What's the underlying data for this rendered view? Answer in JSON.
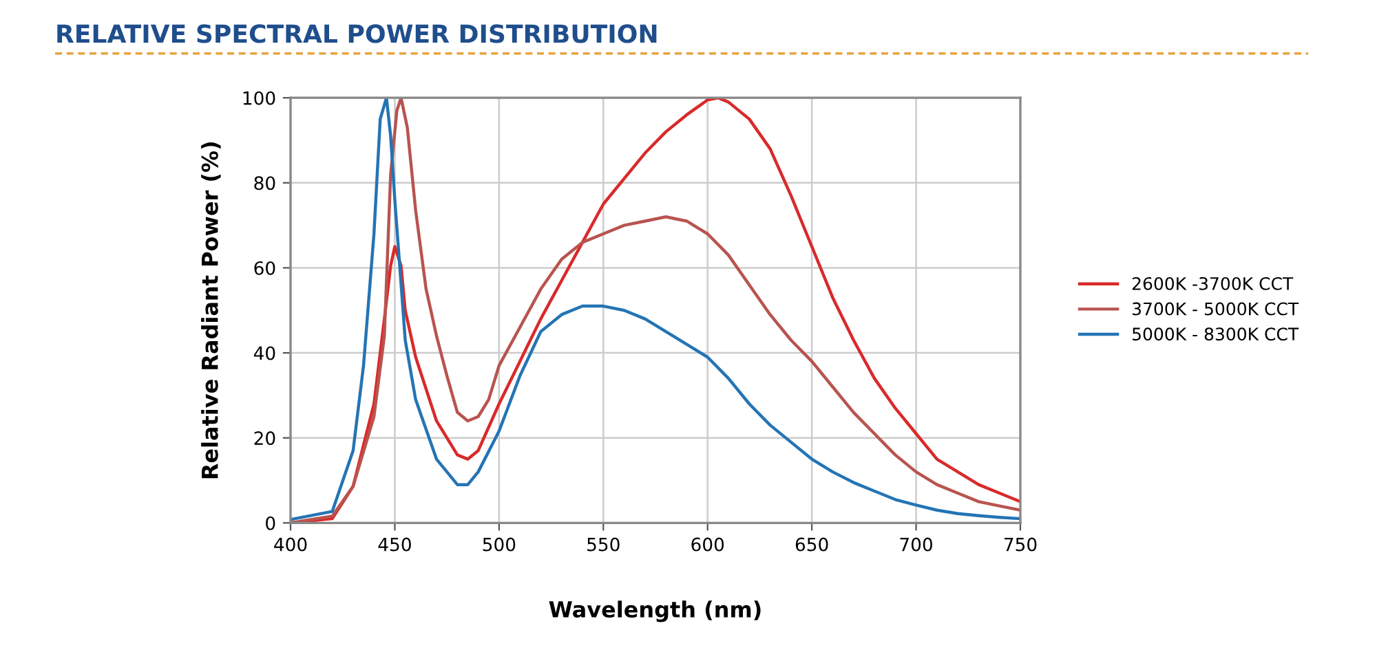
{
  "chart_data": {
    "type": "line",
    "title": "RELATIVE SPECTRAL POWER DISTRIBUTION",
    "xlabel": "Wavelength (nm)",
    "ylabel": "Relative Radiant Power (%)",
    "xlim": [
      400,
      750
    ],
    "xticks": [
      400,
      450,
      500,
      550,
      600,
      650,
      700,
      750
    ],
    "ylim": [
      0,
      100
    ],
    "yticks": [
      0,
      20,
      40,
      60,
      80,
      100
    ],
    "grid": true,
    "legend": "right",
    "marker": "none",
    "line_style": "solid",
    "series": [
      {
        "name": "2600K -3700K CCT",
        "color": "#d92a2a",
        "x": [
          400,
          420,
          430,
          440,
          445,
          448,
          450,
          453,
          455,
          460,
          470,
          480,
          485,
          490,
          500,
          510,
          520,
          530,
          540,
          550,
          560,
          570,
          580,
          590,
          600,
          605,
          610,
          620,
          630,
          640,
          650,
          660,
          670,
          680,
          690,
          700,
          710,
          720,
          730,
          740,
          750
        ],
        "values": [
          0,
          1,
          8.6,
          28,
          48,
          60.5,
          65,
          60.5,
          50,
          39,
          24,
          16,
          15,
          17,
          28,
          38,
          48,
          57,
          66,
          75,
          81,
          87,
          92,
          96,
          99.5,
          100,
          99,
          95,
          88,
          77,
          65,
          53,
          43,
          34,
          27,
          21,
          15,
          12,
          9,
          7,
          5
        ]
      },
      {
        "name": "3700K - 5000K CCT",
        "color": "#b85450",
        "x": [
          400,
          420,
          430,
          440,
          445,
          448,
          451,
          453,
          456,
          460,
          465,
          470,
          475,
          480,
          485,
          490,
          495,
          500,
          510,
          520,
          530,
          540,
          550,
          560,
          570,
          580,
          590,
          600,
          610,
          620,
          630,
          640,
          650,
          660,
          670,
          680,
          690,
          700,
          710,
          720,
          730,
          740,
          750
        ],
        "values": [
          0,
          1.6,
          8.6,
          25,
          44,
          82,
          97,
          100,
          93,
          73.5,
          55,
          44,
          34.6,
          26,
          24,
          25,
          29,
          37,
          46,
          55,
          62,
          66,
          68,
          70,
          71,
          72,
          71,
          68,
          63,
          56,
          49,
          43,
          38,
          32,
          26,
          21,
          16,
          12,
          9,
          7,
          5,
          4,
          3
        ]
      },
      {
        "name": "5000K - 8300K CCT",
        "color": "#2474b4",
        "x": [
          400,
          420,
          430,
          435,
          440,
          443,
          446,
          448,
          450,
          455,
          460,
          470,
          480,
          485,
          490,
          500,
          510,
          520,
          530,
          540,
          550,
          560,
          570,
          580,
          590,
          600,
          610,
          620,
          630,
          640,
          650,
          660,
          670,
          680,
          690,
          700,
          710,
          720,
          730,
          740,
          750
        ],
        "values": [
          0.8,
          2.7,
          17,
          37,
          68,
          95,
          100,
          91,
          76,
          43,
          29,
          15,
          9,
          9,
          12,
          21.6,
          34.6,
          45,
          49,
          51,
          51,
          50,
          48,
          45,
          42,
          39,
          34,
          28,
          23,
          19,
          15,
          12,
          9.5,
          7.5,
          5.5,
          4.2,
          3,
          2.2,
          1.7,
          1.3,
          1
        ]
      }
    ]
  }
}
